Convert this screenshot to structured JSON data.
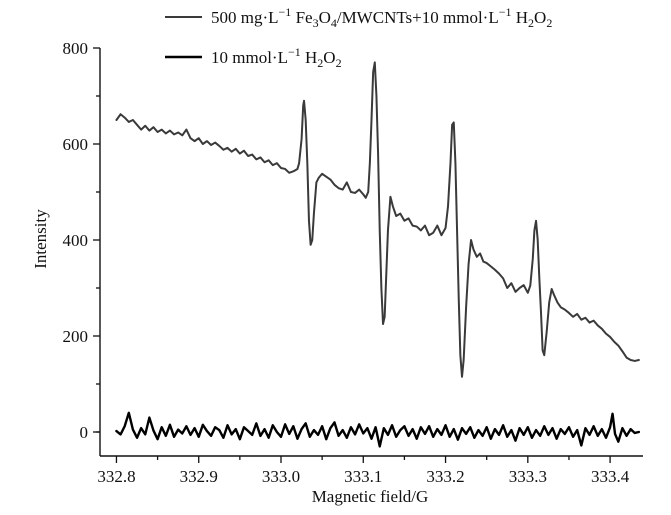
{
  "chart_data": {
    "type": "line",
    "xlabel": "Magnetic field/G",
    "ylabel": "Intensity",
    "xlim": [
      332.78,
      333.44
    ],
    "ylim": [
      -50,
      800
    ],
    "x_ticks": [
      "332.8",
      "332.9",
      "333.0",
      "333.1",
      "333.2",
      "333.3",
      "333.4"
    ],
    "y_ticks": [
      "0",
      "200",
      "400",
      "600",
      "800"
    ],
    "grid": false,
    "legend_position": "top",
    "series": [
      {
        "name": "500 mg·L−1 Fe3O4/MWCNTs+10 mmol·L−1 H2O2",
        "legend": {
          "prefix": "500 mg·L",
          "sup1": "−1",
          "mid1": " Fe",
          "sub1": "3",
          "mid2": "O",
          "sub2": "4",
          "mid3": "/MWCNTs+10 mmol·L",
          "sup2": "−1",
          "mid4": " H",
          "sub3": "2",
          "mid5": "O",
          "sub4": "2"
        },
        "color": "#3a3a3a",
        "points": [
          [
            332.8,
            650
          ],
          [
            332.805,
            662
          ],
          [
            332.81,
            655
          ],
          [
            332.815,
            646
          ],
          [
            332.82,
            650
          ],
          [
            332.825,
            640
          ],
          [
            332.83,
            630
          ],
          [
            332.835,
            638
          ],
          [
            332.84,
            628
          ],
          [
            332.845,
            635
          ],
          [
            332.85,
            625
          ],
          [
            332.855,
            630
          ],
          [
            332.86,
            622
          ],
          [
            332.865,
            628
          ],
          [
            332.87,
            620
          ],
          [
            332.875,
            624
          ],
          [
            332.88,
            618
          ],
          [
            332.885,
            630
          ],
          [
            332.89,
            612
          ],
          [
            332.895,
            606
          ],
          [
            332.9,
            612
          ],
          [
            332.905,
            600
          ],
          [
            332.91,
            606
          ],
          [
            332.915,
            598
          ],
          [
            332.92,
            603
          ],
          [
            332.925,
            596
          ],
          [
            332.93,
            588
          ],
          [
            332.935,
            592
          ],
          [
            332.94,
            584
          ],
          [
            332.945,
            590
          ],
          [
            332.95,
            580
          ],
          [
            332.955,
            586
          ],
          [
            332.96,
            575
          ],
          [
            332.965,
            578
          ],
          [
            332.97,
            568
          ],
          [
            332.975,
            572
          ],
          [
            332.98,
            562
          ],
          [
            332.985,
            566
          ],
          [
            332.99,
            556
          ],
          [
            332.995,
            560
          ],
          [
            333.0,
            550
          ],
          [
            333.005,
            548
          ],
          [
            333.01,
            540
          ],
          [
            333.015,
            543
          ],
          [
            333.02,
            548
          ],
          [
            333.022,
            560
          ],
          [
            333.025,
            610
          ],
          [
            333.027,
            680
          ],
          [
            333.028,
            690
          ],
          [
            333.03,
            650
          ],
          [
            333.032,
            560
          ],
          [
            333.034,
            440
          ],
          [
            333.036,
            390
          ],
          [
            333.038,
            400
          ],
          [
            333.04,
            455
          ],
          [
            333.043,
            520
          ],
          [
            333.046,
            530
          ],
          [
            333.05,
            538
          ],
          [
            333.055,
            532
          ],
          [
            333.06,
            526
          ],
          [
            333.065,
            515
          ],
          [
            333.07,
            508
          ],
          [
            333.075,
            505
          ],
          [
            333.08,
            520
          ],
          [
            333.085,
            500
          ],
          [
            333.09,
            498
          ],
          [
            333.095,
            505
          ],
          [
            333.1,
            495
          ],
          [
            333.103,
            488
          ],
          [
            333.106,
            500
          ],
          [
            333.108,
            560
          ],
          [
            333.11,
            650
          ],
          [
            333.112,
            750
          ],
          [
            333.114,
            770
          ],
          [
            333.116,
            700
          ],
          [
            333.118,
            580
          ],
          [
            333.12,
            420
          ],
          [
            333.122,
            300
          ],
          [
            333.124,
            225
          ],
          [
            333.126,
            240
          ],
          [
            333.128,
            330
          ],
          [
            333.13,
            420
          ],
          [
            333.133,
            490
          ],
          [
            333.136,
            470
          ],
          [
            333.14,
            450
          ],
          [
            333.145,
            455
          ],
          [
            333.15,
            440
          ],
          [
            333.155,
            445
          ],
          [
            333.16,
            430
          ],
          [
            333.165,
            428
          ],
          [
            333.17,
            420
          ],
          [
            333.175,
            430
          ],
          [
            333.18,
            410
          ],
          [
            333.185,
            415
          ],
          [
            333.19,
            430
          ],
          [
            333.195,
            410
          ],
          [
            333.2,
            425
          ],
          [
            333.203,
            470
          ],
          [
            333.206,
            560
          ],
          [
            333.208,
            640
          ],
          [
            333.21,
            645
          ],
          [
            333.212,
            560
          ],
          [
            333.214,
            420
          ],
          [
            333.216,
            280
          ],
          [
            333.218,
            160
          ],
          [
            333.22,
            115
          ],
          [
            333.222,
            150
          ],
          [
            333.225,
            260
          ],
          [
            333.228,
            350
          ],
          [
            333.231,
            400
          ],
          [
            333.234,
            380
          ],
          [
            333.238,
            365
          ],
          [
            333.242,
            372
          ],
          [
            333.246,
            355
          ],
          [
            333.25,
            352
          ],
          [
            333.255,
            345
          ],
          [
            333.26,
            338
          ],
          [
            333.265,
            330
          ],
          [
            333.27,
            320
          ],
          [
            333.275,
            300
          ],
          [
            333.28,
            310
          ],
          [
            333.285,
            292
          ],
          [
            333.29,
            300
          ],
          [
            333.295,
            306
          ],
          [
            333.3,
            290
          ],
          [
            333.303,
            305
          ],
          [
            333.306,
            360
          ],
          [
            333.308,
            420
          ],
          [
            333.31,
            440
          ],
          [
            333.312,
            400
          ],
          [
            333.314,
            320
          ],
          [
            333.316,
            250
          ],
          [
            333.318,
            170
          ],
          [
            333.32,
            160
          ],
          [
            333.323,
            210
          ],
          [
            333.326,
            270
          ],
          [
            333.329,
            298
          ],
          [
            333.332,
            285
          ],
          [
            333.336,
            270
          ],
          [
            333.34,
            260
          ],
          [
            333.345,
            255
          ],
          [
            333.35,
            248
          ],
          [
            333.355,
            240
          ],
          [
            333.36,
            246
          ],
          [
            333.365,
            234
          ],
          [
            333.37,
            238
          ],
          [
            333.375,
            228
          ],
          [
            333.38,
            232
          ],
          [
            333.385,
            222
          ],
          [
            333.39,
            215
          ],
          [
            333.395,
            205
          ],
          [
            333.4,
            198
          ],
          [
            333.405,
            188
          ],
          [
            333.41,
            180
          ],
          [
            333.415,
            168
          ],
          [
            333.42,
            155
          ],
          [
            333.425,
            150
          ],
          [
            333.43,
            148
          ],
          [
            333.435,
            150
          ]
        ]
      },
      {
        "name": "10 mmol·L−1 H2O2",
        "legend": {
          "prefix": "10 mmol·L",
          "sup1": "−1",
          "mid1": " H",
          "sub1": "2",
          "mid2": "O",
          "sub2": "2"
        },
        "color": "#000000",
        "points": [
          [
            332.8,
            2
          ],
          [
            332.805,
            -5
          ],
          [
            332.81,
            12
          ],
          [
            332.815,
            40
          ],
          [
            332.82,
            5
          ],
          [
            332.825,
            -12
          ],
          [
            332.83,
            8
          ],
          [
            332.835,
            -5
          ],
          [
            332.84,
            30
          ],
          [
            332.845,
            3
          ],
          [
            332.85,
            -15
          ],
          [
            332.855,
            10
          ],
          [
            332.86,
            -8
          ],
          [
            332.865,
            15
          ],
          [
            332.87,
            -10
          ],
          [
            332.875,
            5
          ],
          [
            332.88,
            -3
          ],
          [
            332.885,
            12
          ],
          [
            332.89,
            -6
          ],
          [
            332.895,
            8
          ],
          [
            332.9,
            -10
          ],
          [
            332.905,
            15
          ],
          [
            332.91,
            2
          ],
          [
            332.915,
            -8
          ],
          [
            332.92,
            10
          ],
          [
            332.925,
            4
          ],
          [
            332.93,
            -12
          ],
          [
            332.935,
            14
          ],
          [
            332.94,
            -5
          ],
          [
            332.945,
            6
          ],
          [
            332.95,
            -15
          ],
          [
            332.955,
            10
          ],
          [
            332.96,
            2
          ],
          [
            332.965,
            -6
          ],
          [
            332.97,
            18
          ],
          [
            332.975,
            -8
          ],
          [
            332.98,
            6
          ],
          [
            332.985,
            -12
          ],
          [
            332.99,
            14
          ],
          [
            332.995,
            0
          ],
          [
            333.0,
            -10
          ],
          [
            333.005,
            16
          ],
          [
            333.01,
            -4
          ],
          [
            333.015,
            12
          ],
          [
            333.02,
            -14
          ],
          [
            333.025,
            6
          ],
          [
            333.03,
            18
          ],
          [
            333.035,
            -10
          ],
          [
            333.04,
            4
          ],
          [
            333.045,
            -6
          ],
          [
            333.05,
            12
          ],
          [
            333.055,
            -15
          ],
          [
            333.06,
            8
          ],
          [
            333.065,
            20
          ],
          [
            333.07,
            -8
          ],
          [
            333.075,
            4
          ],
          [
            333.08,
            -12
          ],
          [
            333.085,
            10
          ],
          [
            333.09,
            -5
          ],
          [
            333.095,
            16
          ],
          [
            333.1,
            -3
          ],
          [
            333.105,
            8
          ],
          [
            333.11,
            -14
          ],
          [
            333.115,
            10
          ],
          [
            333.12,
            -30
          ],
          [
            333.125,
            8
          ],
          [
            333.13,
            -6
          ],
          [
            333.135,
            14
          ],
          [
            333.14,
            -10
          ],
          [
            333.145,
            4
          ],
          [
            333.15,
            12
          ],
          [
            333.155,
            -8
          ],
          [
            333.16,
            6
          ],
          [
            333.165,
            -14
          ],
          [
            333.17,
            10
          ],
          [
            333.175,
            -4
          ],
          [
            333.18,
            12
          ],
          [
            333.185,
            -10
          ],
          [
            333.19,
            6
          ],
          [
            333.195,
            -6
          ],
          [
            333.2,
            14
          ],
          [
            333.205,
            -10
          ],
          [
            333.21,
            6
          ],
          [
            333.215,
            -16
          ],
          [
            333.22,
            8
          ],
          [
            333.225,
            -4
          ],
          [
            333.23,
            10
          ],
          [
            333.235,
            -12
          ],
          [
            333.24,
            4
          ],
          [
            333.245,
            -8
          ],
          [
            333.25,
            10
          ],
          [
            333.255,
            -14
          ],
          [
            333.26,
            6
          ],
          [
            333.265,
            -6
          ],
          [
            333.27,
            14
          ],
          [
            333.275,
            -10
          ],
          [
            333.28,
            4
          ],
          [
            333.285,
            -18
          ],
          [
            333.29,
            8
          ],
          [
            333.295,
            -6
          ],
          [
            333.3,
            10
          ],
          [
            333.305,
            -12
          ],
          [
            333.31,
            4
          ],
          [
            333.315,
            -8
          ],
          [
            333.32,
            12
          ],
          [
            333.325,
            -6
          ],
          [
            333.33,
            8
          ],
          [
            333.335,
            -14
          ],
          [
            333.34,
            6
          ],
          [
            333.345,
            -4
          ],
          [
            333.35,
            10
          ],
          [
            333.355,
            -10
          ],
          [
            333.36,
            4
          ],
          [
            333.365,
            -28
          ],
          [
            333.37,
            8
          ],
          [
            333.375,
            -6
          ],
          [
            333.38,
            12
          ],
          [
            333.385,
            -8
          ],
          [
            333.39,
            6
          ],
          [
            333.395,
            -12
          ],
          [
            333.4,
            10
          ],
          [
            333.403,
            38
          ],
          [
            333.406,
            -4
          ],
          [
            333.41,
            -20
          ],
          [
            333.415,
            8
          ],
          [
            333.42,
            -8
          ],
          [
            333.425,
            6
          ],
          [
            333.43,
            -2
          ],
          [
            333.435,
            0
          ]
        ]
      }
    ]
  }
}
